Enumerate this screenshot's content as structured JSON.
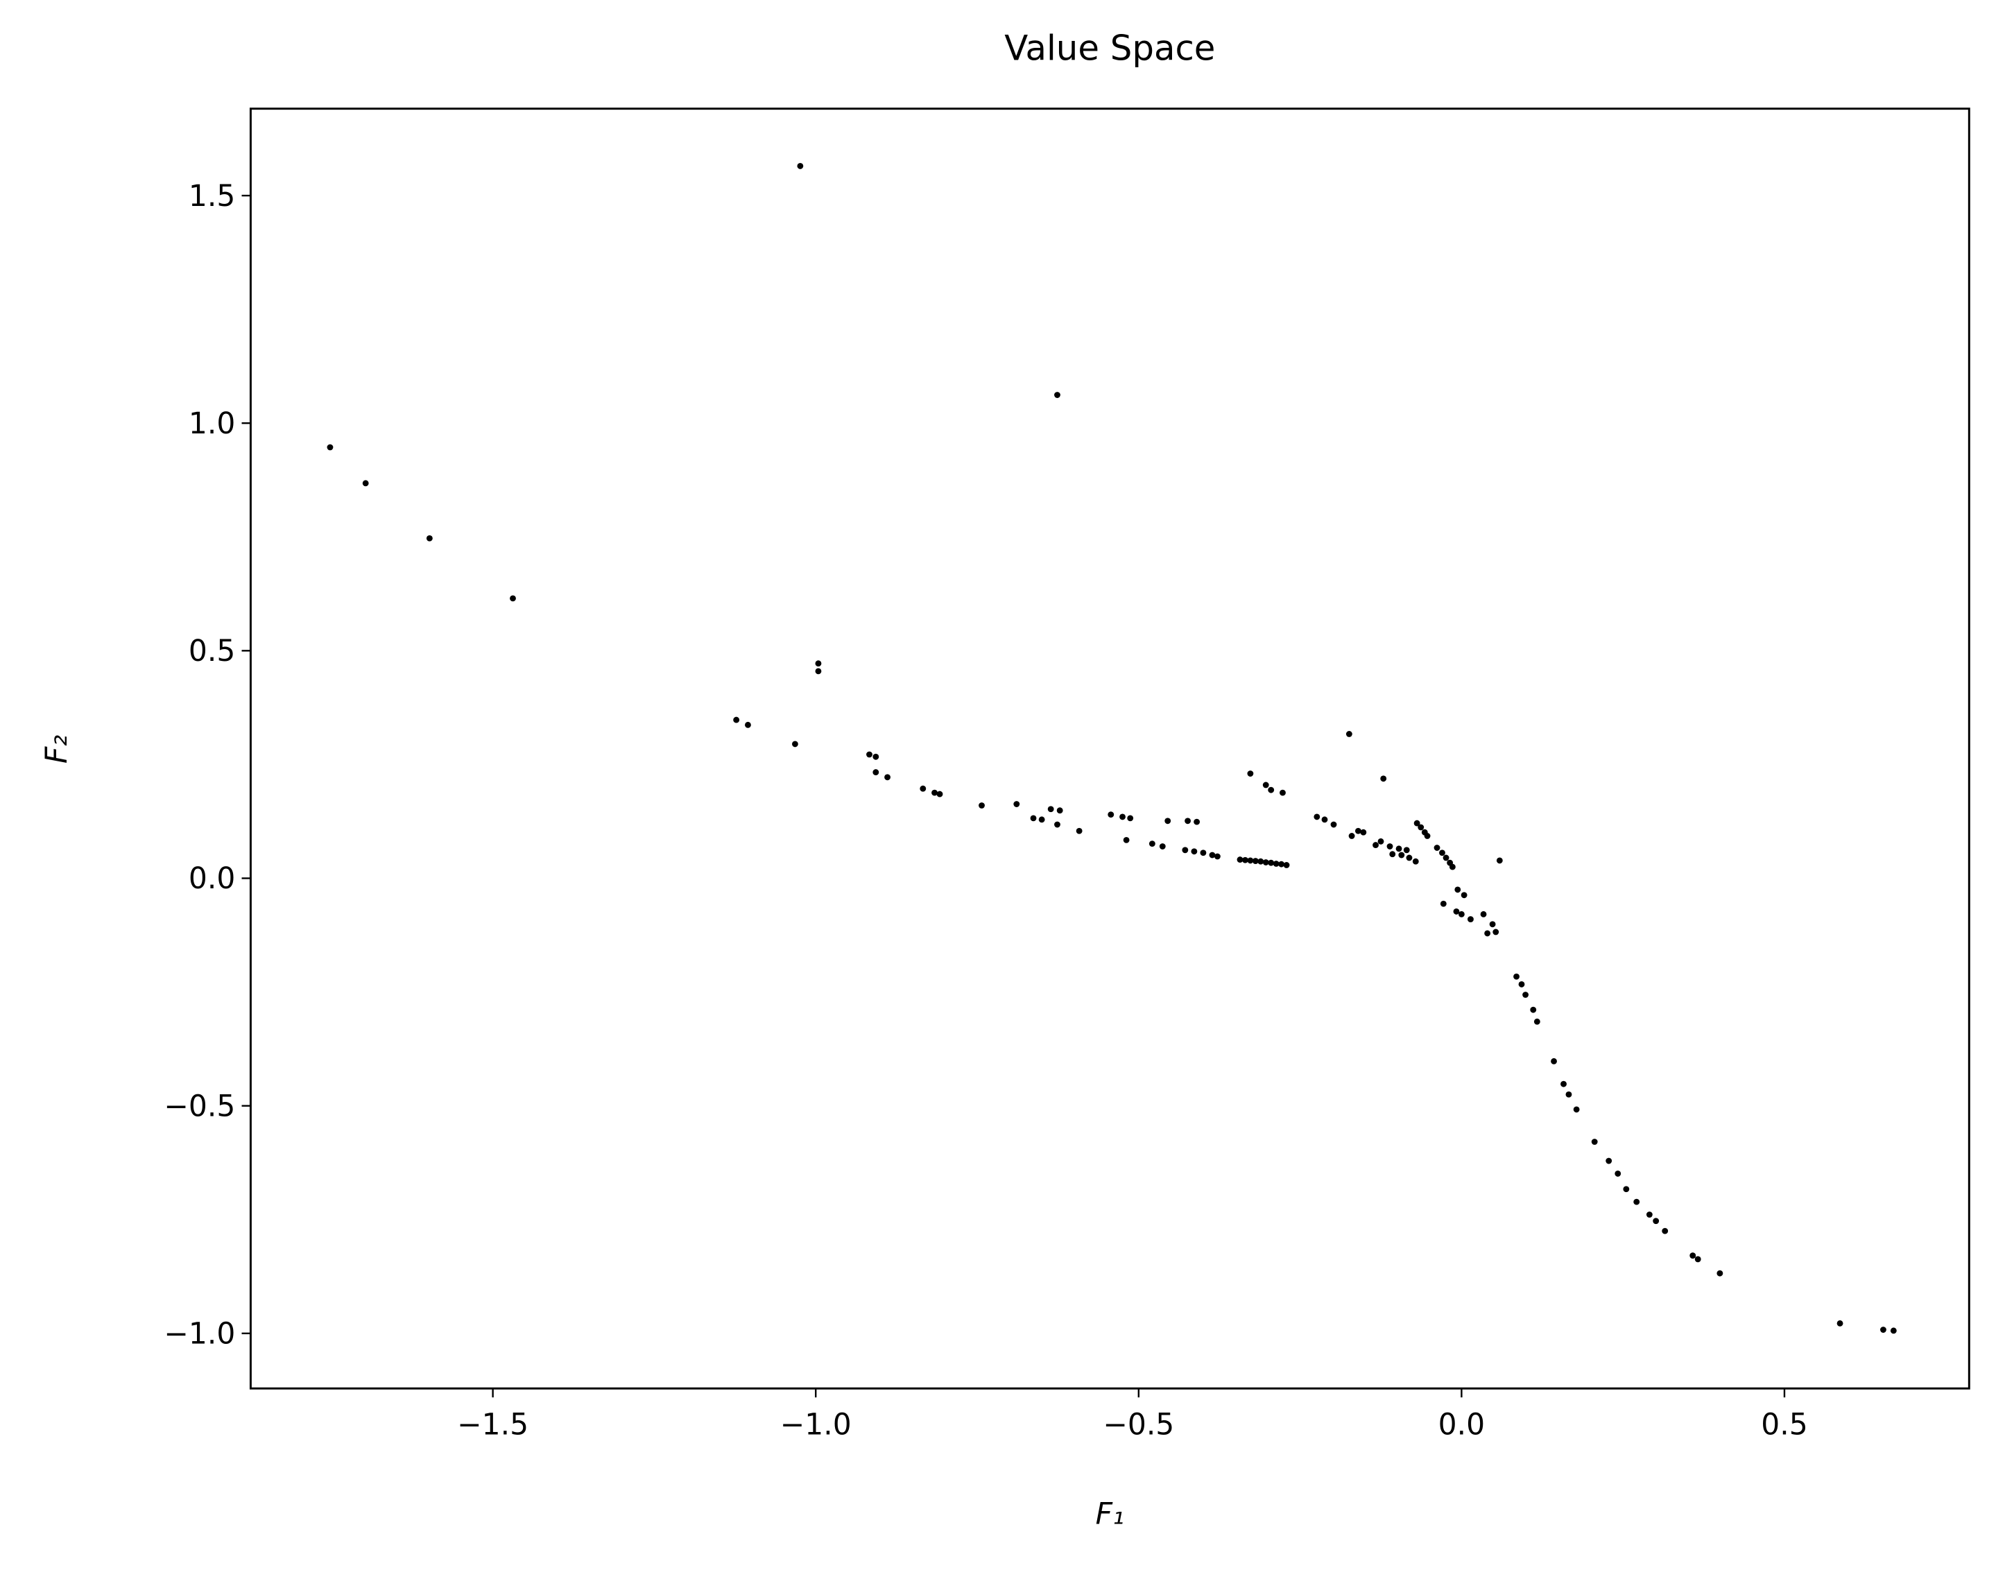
{
  "chart_data": {
    "type": "scatter",
    "title": "Value Space",
    "x_label": "F₁",
    "y_label": "F₂",
    "color": "#000000",
    "x": [
      -1.752,
      -1.697,
      -1.598,
      -1.469,
      -1.024,
      -0.626,
      -0.996,
      -0.996,
      -1.123,
      -1.105,
      -1.032,
      -0.917,
      -0.907,
      -0.907,
      -0.889,
      -0.834,
      -0.816,
      -0.808,
      -0.743,
      -0.689,
      -0.663,
      -0.65,
      -0.636,
      -0.622,
      -0.626,
      -0.592,
      -0.543,
      -0.525,
      -0.513,
      -0.519,
      -0.479,
      -0.463,
      -0.455,
      -0.424,
      -0.41,
      -0.428,
      -0.414,
      -0.4,
      -0.386,
      -0.378,
      -0.343,
      -0.335,
      -0.327,
      -0.319,
      -0.311,
      -0.303,
      -0.295,
      -0.287,
      -0.279,
      -0.271,
      -0.327,
      -0.303,
      -0.295,
      -0.277,
      -0.224,
      -0.212,
      -0.198,
      -0.174,
      -0.17,
      -0.16,
      -0.152,
      -0.133,
      -0.125,
      -0.121,
      -0.111,
      -0.107,
      -0.097,
      -0.093,
      -0.085,
      -0.081,
      -0.071,
      -0.069,
      -0.063,
      -0.057,
      -0.053,
      -0.038,
      -0.03,
      -0.024,
      -0.018,
      -0.014,
      -0.006,
      0.004,
      -0.028,
      -0.008,
      0.0,
      0.014,
      0.034,
      0.04,
      0.048,
      0.053,
      0.059,
      0.085,
      0.093,
      0.099,
      0.111,
      0.117,
      0.143,
      0.158,
      0.166,
      0.178,
      0.206,
      0.228,
      0.242,
      0.255,
      0.271,
      0.291,
      0.301,
      0.315,
      0.358,
      0.366,
      0.4,
      0.586,
      0.653,
      0.669
    ],
    "y": [
      0.947,
      0.868,
      0.747,
      0.615,
      1.565,
      1.062,
      0.472,
      0.455,
      0.348,
      0.337,
      0.295,
      0.272,
      0.267,
      0.233,
      0.222,
      0.197,
      0.188,
      0.185,
      0.16,
      0.163,
      0.132,
      0.129,
      0.152,
      0.149,
      0.118,
      0.104,
      0.14,
      0.135,
      0.132,
      0.084,
      0.076,
      0.07,
      0.126,
      0.126,
      0.124,
      0.062,
      0.059,
      0.056,
      0.051,
      0.048,
      0.041,
      0.04,
      0.039,
      0.038,
      0.037,
      0.035,
      0.034,
      0.032,
      0.031,
      0.029,
      0.23,
      0.205,
      0.194,
      0.188,
      0.135,
      0.129,
      0.118,
      0.317,
      0.093,
      0.104,
      0.101,
      0.073,
      0.081,
      0.219,
      0.07,
      0.053,
      0.065,
      0.051,
      0.062,
      0.045,
      0.037,
      0.121,
      0.112,
      0.101,
      0.093,
      0.067,
      0.056,
      0.045,
      0.034,
      0.025,
      -0.025,
      -0.037,
      -0.056,
      -0.073,
      -0.079,
      -0.09,
      -0.079,
      -0.121,
      -0.101,
      -0.118,
      0.039,
      -0.216,
      -0.233,
      -0.256,
      -0.289,
      -0.315,
      -0.402,
      -0.452,
      -0.475,
      -0.508,
      -0.579,
      -0.621,
      -0.649,
      -0.683,
      -0.711,
      -0.739,
      -0.753,
      -0.775,
      -0.829,
      -0.837,
      -0.868,
      -0.978,
      -0.992,
      -0.994
    ],
    "xlim": [
      -1.875,
      0.786
    ],
    "ylim": [
      -1.121,
      1.691
    ],
    "xticks": [
      {
        "value": -1.5,
        "label": "−1.5"
      },
      {
        "value": -1.0,
        "label": "−1.0"
      },
      {
        "value": -0.5,
        "label": "−0.5"
      },
      {
        "value": 0,
        "label": "0.0"
      },
      0.5
    ],
    "yticks": [
      {
        "value": -1.0,
        "label": "−1.0"
      },
      {
        "value": -0.5,
        "label": "−0.5"
      },
      {
        "value": 0,
        "label": "0.0"
      },
      0.5,
      {
        "value": 1.0,
        "label": "1.0"
      },
      1.5
    ]
  }
}
